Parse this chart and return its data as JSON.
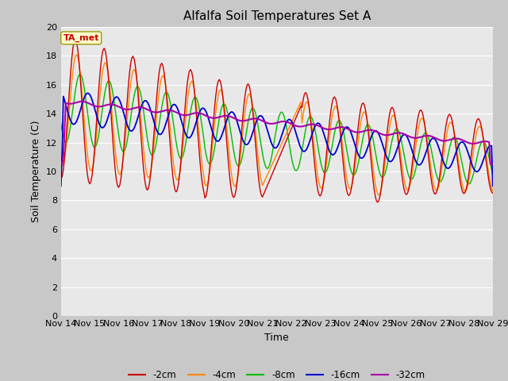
{
  "title": "Alfalfa Soil Temperatures Set A",
  "xlabel": "Time",
  "ylabel": "Soil Temperature (C)",
  "ylim": [
    0,
    20
  ],
  "xlim": [
    0,
    360
  ],
  "yticks": [
    0,
    2,
    4,
    6,
    8,
    10,
    12,
    14,
    16,
    18,
    20
  ],
  "xtick_labels": [
    "Nov 14",
    "Nov 15",
    "Nov 16",
    "Nov 17",
    "Nov 18",
    "Nov 19",
    "Nov 20",
    "Nov 21",
    "Nov 22",
    "Nov 23",
    "Nov 24",
    "Nov 25",
    "Nov 26",
    "Nov 27",
    "Nov 28",
    "Nov 29"
  ],
  "xtick_positions": [
    0,
    24,
    48,
    72,
    96,
    120,
    144,
    168,
    192,
    216,
    240,
    264,
    288,
    312,
    336,
    360
  ],
  "series_colors": [
    "#cc0000",
    "#ff8800",
    "#00bb00",
    "#0000cc",
    "#aa00aa"
  ],
  "series_labels": [
    "-2cm",
    "-4cm",
    "-8cm",
    "-16cm",
    "-32cm"
  ],
  "annotation": "TA_met",
  "annotation_color": "#cc0000",
  "annotation_bg": "#ffffcc",
  "plot_bg": "#e8e8e8",
  "fig_bg": "#c8c8c8",
  "grid_color": "#ffffff",
  "title_fontsize": 11,
  "label_fontsize": 9,
  "tick_fontsize": 8
}
